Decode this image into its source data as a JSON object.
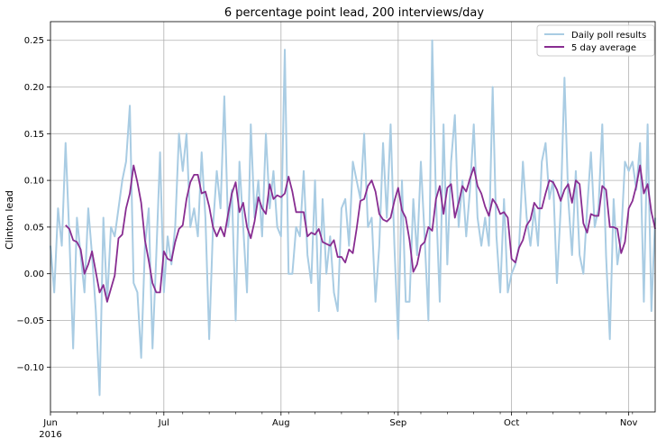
{
  "chart_data": {
    "type": "line",
    "title": "6 percentage point lead, 200 interviews/day",
    "xlabel": "",
    "ylabel": "Clinton lead",
    "x_start": "2016-06-01",
    "x_end": "2016-11-08",
    "ylim": [
      -0.148,
      0.27
    ],
    "yticks": [
      -0.1,
      -0.05,
      0.0,
      0.05,
      0.1,
      0.15,
      0.2,
      0.25
    ],
    "ytick_labels": [
      "−0.10",
      "−0.05",
      "0.00",
      "0.05",
      "0.10",
      "0.15",
      "0.20",
      "0.25"
    ],
    "xticks": [
      "2016-06-01",
      "2016-07-01",
      "2016-08-01",
      "2016-09-01",
      "2016-10-01",
      "2016-11-01"
    ],
    "xtick_labels": [
      "Jun",
      "Jul",
      "Aug",
      "Sep",
      "Oct",
      "Nov"
    ],
    "xtick_year_label": "2016",
    "grid": true,
    "legend_position": "top-right",
    "series": [
      {
        "name": "Daily poll results",
        "color": "#a9cce3",
        "x": [
          "2016-06-01",
          "2016-06-02",
          "2016-06-03",
          "2016-06-04",
          "2016-06-05",
          "2016-06-06",
          "2016-06-07",
          "2016-06-08",
          "2016-06-09",
          "2016-06-10",
          "2016-06-11",
          "2016-06-12",
          "2016-06-13",
          "2016-06-14",
          "2016-06-15",
          "2016-06-16",
          "2016-06-17",
          "2016-06-18",
          "2016-06-19",
          "2016-06-20",
          "2016-06-21",
          "2016-06-22",
          "2016-06-23",
          "2016-06-24",
          "2016-06-25",
          "2016-06-26",
          "2016-06-27",
          "2016-06-28",
          "2016-06-29",
          "2016-06-30",
          "2016-07-01",
          "2016-07-02",
          "2016-07-03",
          "2016-07-04",
          "2016-07-05",
          "2016-07-06",
          "2016-07-07",
          "2016-07-08",
          "2016-07-09",
          "2016-07-10",
          "2016-07-11",
          "2016-07-12",
          "2016-07-13",
          "2016-07-14",
          "2016-07-15",
          "2016-07-16",
          "2016-07-17",
          "2016-07-18",
          "2016-07-19",
          "2016-07-20",
          "2016-07-21",
          "2016-07-22",
          "2016-07-23",
          "2016-07-24",
          "2016-07-25",
          "2016-07-26",
          "2016-07-27",
          "2016-07-28",
          "2016-07-29",
          "2016-07-30",
          "2016-07-31",
          "2016-08-01",
          "2016-08-02",
          "2016-08-03",
          "2016-08-04",
          "2016-08-05",
          "2016-08-06",
          "2016-08-07",
          "2016-08-08",
          "2016-08-09",
          "2016-08-10",
          "2016-08-11",
          "2016-08-12",
          "2016-08-13",
          "2016-08-14",
          "2016-08-15",
          "2016-08-16",
          "2016-08-17",
          "2016-08-18",
          "2016-08-19",
          "2016-08-20",
          "2016-08-21",
          "2016-08-22",
          "2016-08-23",
          "2016-08-24",
          "2016-08-25",
          "2016-08-26",
          "2016-08-27",
          "2016-08-28",
          "2016-08-29",
          "2016-08-30",
          "2016-08-31",
          "2016-09-01",
          "2016-09-02",
          "2016-09-03",
          "2016-09-04",
          "2016-09-05",
          "2016-09-06",
          "2016-09-07",
          "2016-09-08",
          "2016-09-09",
          "2016-09-10",
          "2016-09-11",
          "2016-09-12",
          "2016-09-13",
          "2016-09-14",
          "2016-09-15",
          "2016-09-16",
          "2016-09-17",
          "2016-09-18",
          "2016-09-19",
          "2016-09-20",
          "2016-09-21",
          "2016-09-22",
          "2016-09-23",
          "2016-09-24",
          "2016-09-25",
          "2016-09-26",
          "2016-09-27",
          "2016-09-28",
          "2016-09-29",
          "2016-09-30",
          "2016-10-01",
          "2016-10-02",
          "2016-10-03",
          "2016-10-04",
          "2016-10-05",
          "2016-10-06",
          "2016-10-07",
          "2016-10-08",
          "2016-10-09",
          "2016-10-10",
          "2016-10-11",
          "2016-10-12",
          "2016-10-13",
          "2016-10-14",
          "2016-10-15",
          "2016-10-16",
          "2016-10-17",
          "2016-10-18",
          "2016-10-19",
          "2016-10-20",
          "2016-10-21",
          "2016-10-22",
          "2016-10-23",
          "2016-10-24",
          "2016-10-25",
          "2016-10-26",
          "2016-10-27",
          "2016-10-28",
          "2016-10-29",
          "2016-10-30",
          "2016-10-31",
          "2016-11-01",
          "2016-11-02",
          "2016-11-03",
          "2016-11-04",
          "2016-11-05",
          "2016-11-06",
          "2016-11-07",
          "2016-11-08"
        ],
        "values": [
          0.03,
          -0.02,
          0.07,
          0.03,
          0.14,
          0.04,
          -0.08,
          0.06,
          0.02,
          -0.02,
          0.07,
          0.02,
          -0.04,
          -0.13,
          0.06,
          -0.03,
          0.05,
          0.04,
          0.07,
          0.1,
          0.12,
          0.18,
          -0.01,
          -0.02,
          -0.09,
          0.03,
          0.07,
          -0.08,
          0.02,
          0.13,
          -0.02,
          0.04,
          0.01,
          0.05,
          0.15,
          0.11,
          0.15,
          0.05,
          0.07,
          0.04,
          0.13,
          0.06,
          -0.07,
          0.05,
          0.11,
          0.07,
          0.19,
          0.05,
          0.09,
          -0.05,
          0.12,
          0.05,
          -0.02,
          0.16,
          0.06,
          0.1,
          0.04,
          0.15,
          0.07,
          0.11,
          0.05,
          0.04,
          0.24,
          0.0,
          0.0,
          0.05,
          0.04,
          0.11,
          0.02,
          -0.01,
          0.1,
          -0.04,
          0.08,
          0.0,
          0.04,
          -0.02,
          -0.04,
          0.07,
          0.08,
          0.03,
          0.12,
          0.1,
          0.08,
          0.15,
          0.05,
          0.06,
          -0.03,
          0.03,
          0.14,
          0.06,
          0.16,
          0.03,
          -0.07,
          0.1,
          -0.03,
          -0.03,
          0.08,
          0.02,
          0.12,
          0.04,
          -0.05,
          0.25,
          0.08,
          -0.03,
          0.16,
          0.01,
          0.12,
          0.17,
          0.05,
          0.1,
          0.04,
          0.09,
          0.16,
          0.06,
          0.03,
          0.06,
          0.03,
          0.2,
          0.04,
          -0.02,
          0.08,
          -0.02,
          0.0,
          0.01,
          0.03,
          0.12,
          0.06,
          0.03,
          0.07,
          0.03,
          0.12,
          0.14,
          0.08,
          0.1,
          -0.01,
          0.07,
          0.21,
          0.08,
          0.02,
          0.11,
          0.02,
          0.0,
          0.07,
          0.13,
          0.05,
          0.07,
          0.16,
          0.02,
          -0.07,
          0.08,
          0.01,
          0.04,
          0.12,
          0.11,
          0.12,
          0.09,
          0.14,
          -0.03,
          0.16,
          -0.04,
          0.06
        ]
      },
      {
        "name": "5 day average",
        "color": "#882d91",
        "x": [
          "2016-06-05",
          "2016-06-06",
          "2016-06-07",
          "2016-06-08",
          "2016-06-09",
          "2016-06-10",
          "2016-06-11",
          "2016-06-12",
          "2016-06-13",
          "2016-06-14",
          "2016-06-15",
          "2016-06-16",
          "2016-06-17",
          "2016-06-18",
          "2016-06-19",
          "2016-06-20",
          "2016-06-21",
          "2016-06-22",
          "2016-06-23",
          "2016-06-24",
          "2016-06-25",
          "2016-06-26",
          "2016-06-27",
          "2016-06-28",
          "2016-06-29",
          "2016-06-30",
          "2016-07-01",
          "2016-07-02",
          "2016-07-03",
          "2016-07-04",
          "2016-07-05",
          "2016-07-06",
          "2016-07-07",
          "2016-07-08",
          "2016-07-09",
          "2016-07-10",
          "2016-07-11",
          "2016-07-12",
          "2016-07-13",
          "2016-07-14",
          "2016-07-15",
          "2016-07-16",
          "2016-07-17",
          "2016-07-18",
          "2016-07-19",
          "2016-07-20",
          "2016-07-21",
          "2016-07-22",
          "2016-07-23",
          "2016-07-24",
          "2016-07-25",
          "2016-07-26",
          "2016-07-27",
          "2016-07-28",
          "2016-07-29",
          "2016-07-30",
          "2016-07-31",
          "2016-08-01",
          "2016-08-02",
          "2016-08-03",
          "2016-08-04",
          "2016-08-05",
          "2016-08-06",
          "2016-08-07",
          "2016-08-08",
          "2016-08-09",
          "2016-08-10",
          "2016-08-11",
          "2016-08-12",
          "2016-08-13",
          "2016-08-14",
          "2016-08-15",
          "2016-08-16",
          "2016-08-17",
          "2016-08-18",
          "2016-08-19",
          "2016-08-20",
          "2016-08-21",
          "2016-08-22",
          "2016-08-23",
          "2016-08-24",
          "2016-08-25",
          "2016-08-26",
          "2016-08-27",
          "2016-08-28",
          "2016-08-29",
          "2016-08-30",
          "2016-08-31",
          "2016-09-01",
          "2016-09-02",
          "2016-09-03",
          "2016-09-04",
          "2016-09-05",
          "2016-09-06",
          "2016-09-07",
          "2016-09-08",
          "2016-09-09",
          "2016-09-10",
          "2016-09-11",
          "2016-09-12",
          "2016-09-13",
          "2016-09-14",
          "2016-09-15",
          "2016-09-16",
          "2016-09-17",
          "2016-09-18",
          "2016-09-19",
          "2016-09-20",
          "2016-09-21",
          "2016-09-22",
          "2016-09-23",
          "2016-09-24",
          "2016-09-25",
          "2016-09-26",
          "2016-09-27",
          "2016-09-28",
          "2016-09-29",
          "2016-09-30",
          "2016-10-01",
          "2016-10-02",
          "2016-10-03",
          "2016-10-04",
          "2016-10-05",
          "2016-10-06",
          "2016-10-07",
          "2016-10-08",
          "2016-10-09",
          "2016-10-10",
          "2016-10-11",
          "2016-10-12",
          "2016-10-13",
          "2016-10-14",
          "2016-10-15",
          "2016-10-16",
          "2016-10-17",
          "2016-10-18",
          "2016-10-19",
          "2016-10-20",
          "2016-10-21",
          "2016-10-22",
          "2016-10-23",
          "2016-10-24",
          "2016-10-25",
          "2016-10-26",
          "2016-10-27",
          "2016-10-28",
          "2016-10-29",
          "2016-10-30",
          "2016-10-31",
          "2016-11-01",
          "2016-11-02",
          "2016-11-03",
          "2016-11-04",
          "2016-11-05",
          "2016-11-06",
          "2016-11-07",
          "2016-11-08"
        ],
        "values": [
          0.052,
          0.048,
          0.036,
          0.034,
          0.026,
          0.0,
          0.01,
          0.024,
          0.002,
          -0.02,
          -0.012,
          -0.03,
          -0.016,
          -0.002,
          0.038,
          0.042,
          0.07,
          0.086,
          0.116,
          0.098,
          0.076,
          0.036,
          0.014,
          -0.01,
          -0.02,
          -0.02,
          0.024,
          0.016,
          0.014,
          0.034,
          0.048,
          0.052,
          0.08,
          0.098,
          0.106,
          0.106,
          0.086,
          0.088,
          0.072,
          0.05,
          0.04,
          0.05,
          0.04,
          0.064,
          0.086,
          0.098,
          0.066,
          0.076,
          0.05,
          0.038,
          0.056,
          0.082,
          0.07,
          0.064,
          0.096,
          0.08,
          0.084,
          0.082,
          0.086,
          0.104,
          0.088,
          0.066,
          0.066,
          0.066,
          0.04,
          0.044,
          0.042,
          0.048,
          0.034,
          0.032,
          0.03,
          0.036,
          0.018,
          0.018,
          0.012,
          0.026,
          0.022,
          0.048,
          0.078,
          0.08,
          0.094,
          0.1,
          0.088,
          0.064,
          0.058,
          0.056,
          0.06,
          0.078,
          0.092,
          0.068,
          0.06,
          0.036,
          0.002,
          0.01,
          0.03,
          0.034,
          0.05,
          0.046,
          0.08,
          0.094,
          0.064,
          0.092,
          0.096,
          0.06,
          0.076,
          0.094,
          0.088,
          0.102,
          0.114,
          0.094,
          0.086,
          0.072,
          0.062,
          0.08,
          0.074,
          0.064,
          0.066,
          0.06,
          0.016,
          0.012,
          0.028,
          0.036,
          0.052,
          0.058,
          0.076,
          0.07,
          0.07,
          0.086,
          0.1,
          0.098,
          0.09,
          0.078,
          0.09,
          0.096,
          0.076,
          0.1,
          0.096,
          0.054,
          0.044,
          0.064,
          0.062,
          0.062,
          0.094,
          0.09,
          0.05,
          0.05,
          0.048,
          0.022,
          0.034,
          0.07,
          0.078,
          0.094,
          0.116,
          0.086,
          0.096,
          0.066,
          0.048
        ]
      }
    ]
  }
}
